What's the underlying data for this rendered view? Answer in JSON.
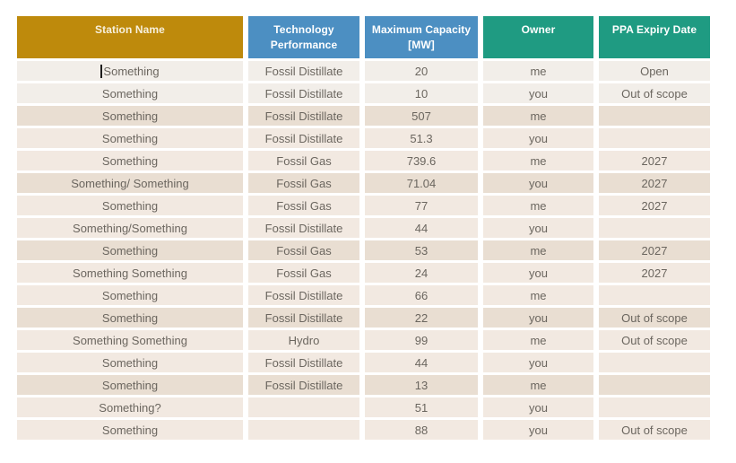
{
  "table": {
    "header": {
      "columns": [
        {
          "label": "Station Name",
          "bg": "#be8a0c",
          "fg": "#f7f0dd"
        },
        {
          "label": "Technology Performance",
          "bg": "#4c8fc2",
          "fg": "#ffffff"
        },
        {
          "label": "Maximum Capacity [MW]",
          "bg": "#4c8fc2",
          "fg": "#ffffff"
        },
        {
          "label": "Owner",
          "bg": "#1f9b82",
          "fg": "#ffffff"
        },
        {
          "label": "PPA Expiry Date",
          "bg": "#1f9b82",
          "fg": "#ffffff"
        }
      ]
    },
    "rows": [
      {
        "station": "Something",
        "technology": "Fossil Distillate",
        "capacity": "20",
        "owner": "me",
        "ppa": "Open",
        "tone": "light-gray",
        "caret": true
      },
      {
        "station": "Something",
        "technology": "Fossil Distillate",
        "capacity": "10",
        "owner": "you",
        "ppa": "Out of scope",
        "tone": "light-gray"
      },
      {
        "station": "Something",
        "technology": "Fossil Distillate",
        "capacity": "507",
        "owner": "me",
        "ppa": "",
        "tone": "dark-beige"
      },
      {
        "station": "Something",
        "technology": "Fossil Distillate",
        "capacity": "51.3",
        "owner": "you",
        "ppa": "",
        "tone": "light-beige"
      },
      {
        "station": "Something",
        "technology": "Fossil Gas",
        "capacity": "739.6",
        "owner": "me",
        "ppa": "2027",
        "tone": "light-beige"
      },
      {
        "station": "Something/ Something",
        "technology": "Fossil Gas",
        "capacity": "71.04",
        "owner": "you",
        "ppa": "2027",
        "tone": "dark-beige"
      },
      {
        "station": "Something",
        "technology": "Fossil Gas",
        "capacity": "77",
        "owner": "me",
        "ppa": "2027",
        "tone": "light-beige"
      },
      {
        "station": "Something/Something",
        "technology": "Fossil Distillate",
        "capacity": "44",
        "owner": "you",
        "ppa": "",
        "tone": "light-beige"
      },
      {
        "station": "Something",
        "technology": "Fossil Gas",
        "capacity": "53",
        "owner": "me",
        "ppa": "2027",
        "tone": "dark-beige"
      },
      {
        "station": "Something Something",
        "technology": "Fossil Gas",
        "capacity": "24",
        "owner": "you",
        "ppa": "2027",
        "tone": "light-beige"
      },
      {
        "station": "Something",
        "technology": "Fossil Distillate",
        "capacity": "66",
        "owner": "me",
        "ppa": "",
        "tone": "light-beige"
      },
      {
        "station": "Something",
        "technology": "Fossil Distillate",
        "capacity": "22",
        "owner": "you",
        "ppa": "Out of scope",
        "tone": "dark-beige"
      },
      {
        "station": "Something Something",
        "technology": "Hydro",
        "capacity": "99",
        "owner": "me",
        "ppa": "Out of scope",
        "tone": "light-beige"
      },
      {
        "station": "Something",
        "technology": "Fossil Distillate",
        "capacity": "44",
        "owner": "you",
        "ppa": "",
        "tone": "light-beige"
      },
      {
        "station": "Something",
        "technology": "Fossil Distillate",
        "capacity": "13",
        "owner": "me",
        "ppa": "",
        "tone": "dark-beige"
      },
      {
        "station": "Something?",
        "technology": "",
        "capacity": "51",
        "owner": "you",
        "ppa": "",
        "tone": "light-beige"
      },
      {
        "station": "Something",
        "technology": "",
        "capacity": "88",
        "owner": "you",
        "ppa": "Out of scope",
        "tone": "light-beige"
      }
    ],
    "colors": {
      "row_light_gray": "#f2eee9",
      "row_light_beige": "#f2e9e1",
      "row_dark_beige": "#e9ded2",
      "body_text": "#6b665f",
      "page_bg": "#ffffff",
      "caret": "#1c1c1c"
    }
  }
}
